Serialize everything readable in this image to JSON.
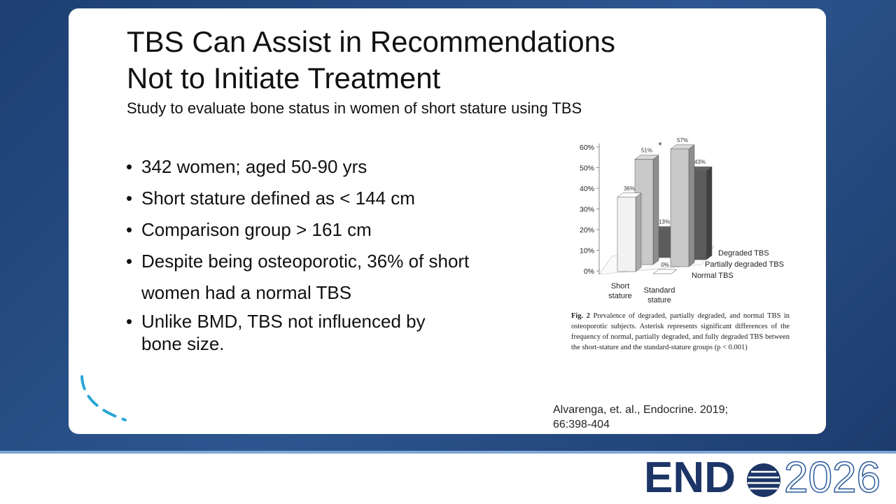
{
  "slide": {
    "title_lines": [
      "TBS Can Assist in Recommendations",
      "Not to Initiate Treatment"
    ],
    "subtitle": "Study to evaluate bone status in women of short stature using TBS",
    "bullets": [
      "342 women; aged 50-90 yrs",
      "Short stature defined as < 144 cm",
      "Comparison group > 161 cm",
      "Despite being osteoporotic, 36% of short women had a normal TBS",
      "Unlike BMD, TBS not influenced by bone size."
    ],
    "citation": "Alvarenga, et. al., Endocrine. 2019; 66:398-404"
  },
  "figure": {
    "caption_label": "Fig. 2",
    "caption": "Prevalence of degraded, partially degraded, and normal TBS in osteoporotic subjects. Asterisk represents significant differences of the frequency of normal, partially degraded, and fully degraded TBS between the short-stature and the standard-stature groups (p < 0.001)"
  },
  "chart_data": {
    "type": "bar3d",
    "categories": [
      "Short stature",
      "Standard stature"
    ],
    "series": [
      {
        "name": "Normal TBS",
        "color": "#f2f2f2",
        "values": [
          36,
          0
        ],
        "value_labels": [
          "36%",
          "0%"
        ]
      },
      {
        "name": "Partially degraded TBS",
        "color": "#c9c9c9",
        "values": [
          51,
          57
        ],
        "value_labels": [
          "51%",
          "57%"
        ]
      },
      {
        "name": "Degraded TBS",
        "color": "#5c5c5c",
        "values": [
          13,
          43
        ],
        "value_labels": [
          "13%",
          "43%"
        ]
      }
    ],
    "ylim": [
      0,
      60
    ],
    "yticks": [
      {
        "value": 0,
        "label": "0%"
      },
      {
        "value": 10,
        "label": "10%"
      },
      {
        "value": 20,
        "label": "20%"
      },
      {
        "value": 30,
        "label": "30%"
      },
      {
        "value": 40,
        "label": "40%"
      },
      {
        "value": 50,
        "label": "50%"
      },
      {
        "value": 60,
        "label": "60%"
      }
    ],
    "annotation": "*"
  },
  "logo": {
    "left": "END",
    "right": "2026"
  }
}
